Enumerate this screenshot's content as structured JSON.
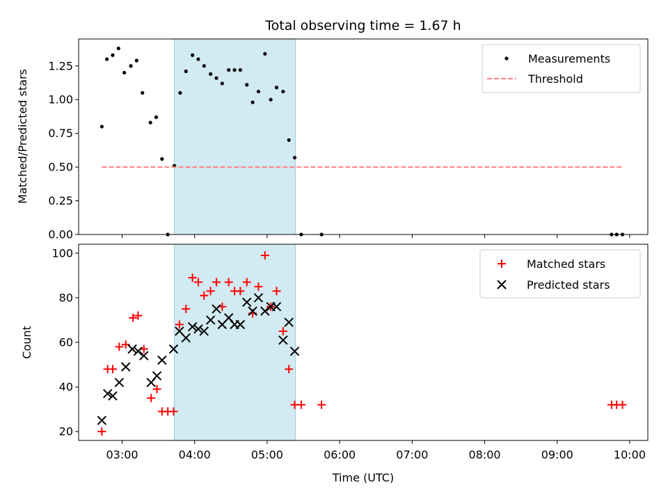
{
  "chart_data": [
    {
      "type": "scatter",
      "title": "Total observing time = 1.67 h",
      "xlabel": "",
      "ylabel": "Matched/Predicted stars",
      "xlim": [
        2.4,
        10.25
      ],
      "ylim": [
        0,
        1.45
      ],
      "x_tick_labels": [],
      "y_ticks": [
        0.0,
        0.25,
        0.5,
        0.75,
        1.0,
        1.25
      ],
      "y_tick_labels": [
        "0.00",
        "0.25",
        "0.50",
        "0.75",
        "1.00",
        "1.25"
      ],
      "highlight_span": {
        "x": [
          3.72,
          5.39
        ],
        "color": "#add8e6"
      },
      "legend": {
        "placement": "top-right",
        "entries": [
          "Measurements",
          "Threshold"
        ]
      },
      "series": [
        {
          "name": "Measurements",
          "marker": "dot",
          "color": "#000000",
          "x": [
            2.72,
            2.79,
            2.87,
            2.95,
            3.03,
            3.12,
            3.2,
            3.28,
            3.39,
            3.47,
            3.55,
            3.63,
            3.72,
            3.8,
            3.88,
            3.97,
            4.05,
            4.13,
            4.22,
            4.3,
            4.38,
            4.47,
            4.55,
            4.63,
            4.72,
            4.8,
            4.88,
            4.97,
            5.05,
            5.13,
            5.22,
            5.3,
            5.38,
            5.47,
            5.75,
            9.75,
            9.82,
            9.9
          ],
          "y": [
            0.8,
            1.3,
            1.33,
            1.38,
            1.2,
            1.25,
            1.29,
            1.05,
            0.83,
            0.87,
            0.56,
            0.0,
            0.51,
            1.05,
            1.21,
            1.33,
            1.3,
            1.25,
            1.19,
            1.16,
            1.12,
            1.22,
            1.22,
            1.22,
            1.11,
            0.98,
            1.06,
            1.34,
            1.0,
            1.09,
            1.06,
            0.7,
            0.57,
            0.0,
            0.0,
            0.0,
            0.0,
            0.0
          ]
        },
        {
          "name": "Threshold",
          "marker": "dashed-line",
          "color": "#ff8080",
          "x": [
            2.72,
            9.9
          ],
          "y": [
            0.5,
            0.5
          ]
        }
      ]
    },
    {
      "type": "scatter",
      "title": "",
      "xlabel": "Time (UTC)",
      "ylabel": "Count",
      "xlim": [
        2.4,
        10.25
      ],
      "ylim": [
        16,
        104
      ],
      "x_ticks": [
        3,
        4,
        5,
        6,
        7,
        8,
        9,
        10
      ],
      "x_tick_labels": [
        "03:00",
        "04:00",
        "05:00",
        "06:00",
        "07:00",
        "08:00",
        "09:00",
        "10:00"
      ],
      "y_ticks": [
        20,
        40,
        60,
        80,
        100
      ],
      "y_tick_labels": [
        "20",
        "40",
        "60",
        "80",
        "100"
      ],
      "highlight_span": {
        "x": [
          3.72,
          5.39
        ],
        "color": "#add8e6"
      },
      "legend": {
        "placement": "top-right",
        "entries": [
          "Matched stars",
          "Predicted stars"
        ]
      },
      "series": [
        {
          "name": "Matched stars",
          "marker": "plus",
          "color": "#ff0000",
          "x": [
            2.72,
            2.8,
            2.87,
            2.96,
            3.05,
            3.15,
            3.22,
            3.3,
            3.4,
            3.48,
            3.55,
            3.63,
            3.71,
            3.79,
            3.88,
            3.97,
            4.05,
            4.13,
            4.22,
            4.3,
            4.38,
            4.47,
            4.55,
            4.63,
            4.72,
            4.8,
            4.88,
            4.97,
            5.05,
            5.13,
            5.22,
            5.3,
            5.38,
            5.47,
            5.75,
            9.75,
            9.82,
            9.9
          ],
          "y": [
            20,
            48,
            48,
            58,
            59,
            71,
            72,
            57,
            35,
            39,
            29,
            29,
            29,
            68,
            75,
            89,
            87,
            81,
            83,
            87,
            76,
            87,
            83,
            83,
            87,
            73,
            85,
            99,
            76,
            83,
            65,
            48,
            32,
            32,
            32,
            32,
            32,
            32
          ]
        },
        {
          "name": "Predicted stars",
          "marker": "x",
          "color": "#000000",
          "x": [
            2.72,
            2.8,
            2.87,
            2.96,
            3.05,
            3.14,
            3.22,
            3.3,
            3.4,
            3.48,
            3.55,
            3.71,
            3.79,
            3.88,
            3.97,
            4.05,
            4.13,
            4.22,
            4.3,
            4.38,
            4.47,
            4.55,
            4.63,
            4.72,
            4.8,
            4.88,
            4.97,
            5.05,
            5.13,
            5.22,
            5.3,
            5.38
          ],
          "y": [
            25,
            37,
            36,
            42,
            49,
            57,
            56,
            54,
            42,
            45,
            52,
            57,
            65,
            62,
            67,
            66,
            65,
            70,
            75,
            68,
            71,
            68,
            68,
            78,
            74,
            80,
            74,
            76,
            76,
            61,
            69,
            56
          ]
        }
      ]
    }
  ]
}
